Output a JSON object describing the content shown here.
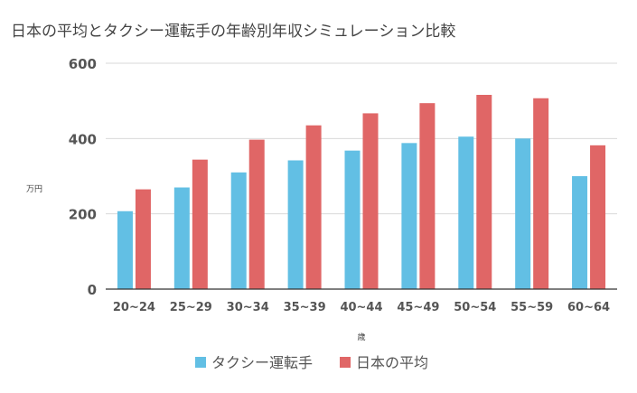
{
  "chart_data": {
    "type": "bar",
    "title": "日本の平均とタクシー運転手の年齢別年収シミュレーション比較",
    "xlabel": "歳",
    "ylabel": "万円",
    "ylim": [
      0,
      600
    ],
    "yticks": [
      0,
      200,
      400,
      600
    ],
    "grid": true,
    "legend_position": "bottom",
    "categories": [
      "20~24",
      "25~29",
      "30~34",
      "35~39",
      "40~44",
      "45~49",
      "50~54",
      "55~59",
      "60~64"
    ],
    "series": [
      {
        "name": "タクシー運転手",
        "color": "#62bfe4",
        "values": [
          207,
          270,
          310,
          342,
          368,
          388,
          405,
          400,
          300
        ]
      },
      {
        "name": "日本の平均",
        "color": "#e06666",
        "values": [
          265,
          344,
          397,
          435,
          467,
          494,
          516,
          507,
          382
        ]
      }
    ]
  }
}
